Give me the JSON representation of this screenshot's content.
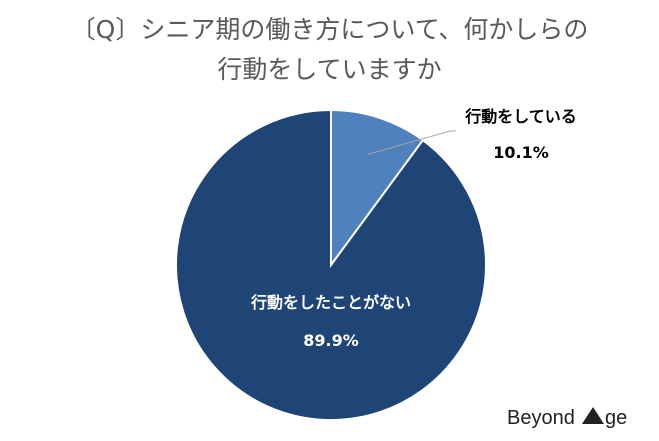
{
  "title": {
    "line1": "〔Q〕シニア期の働き方について、何かしらの",
    "line2": "行動をしていますか"
  },
  "chart_data": {
    "type": "pie",
    "slices": [
      {
        "label": "行動をしている",
        "value": 10.1,
        "value_label": "10.1%",
        "color": "#4f81bd"
      },
      {
        "label": "行動をしたことがない",
        "value": 89.9,
        "value_label": "89.9%",
        "color": "#1f4476"
      }
    ],
    "start_angle": "12 o'clock",
    "direction": "clockwise",
    "slice_border_color": "#ffffff",
    "leader_line_color": "#a6a6a6"
  },
  "logo": {
    "text": "Beyond Age"
  }
}
